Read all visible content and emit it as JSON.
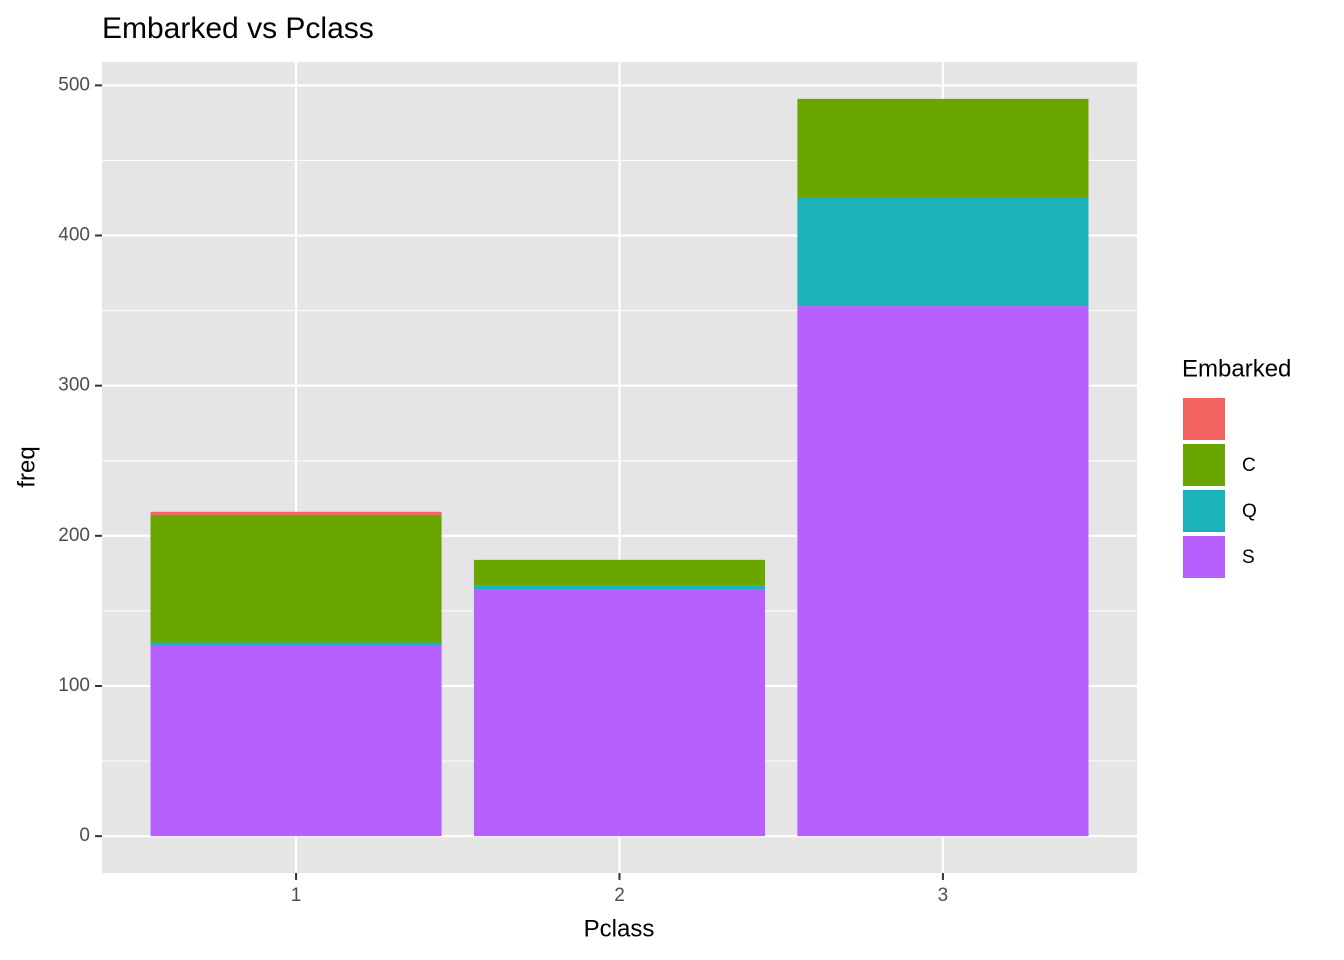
{
  "chart_data": {
    "type": "bar",
    "stacked": true,
    "title": "Embarked vs Pclass",
    "x_label": "Pclass",
    "y_label": "freq",
    "legend_title": "Embarked",
    "legend_position": "right",
    "categories": [
      "1",
      "2",
      "3"
    ],
    "series": [
      {
        "name": null,
        "color": "#F2635F",
        "values": [
          2,
          0,
          0
        ]
      },
      {
        "name": "C",
        "color": "#6BA500",
        "values": [
          85,
          17,
          66
        ]
      },
      {
        "name": "Q",
        "color": "#1BB3B9",
        "values": [
          2,
          3,
          72
        ]
      },
      {
        "name": "S",
        "color": "#B760FF",
        "values": [
          127,
          164,
          353
        ]
      }
    ],
    "ylim": [
      -24.55,
      515.55
    ],
    "yticks": [
      0,
      100,
      200,
      300,
      400,
      500
    ],
    "grid": true
  }
}
